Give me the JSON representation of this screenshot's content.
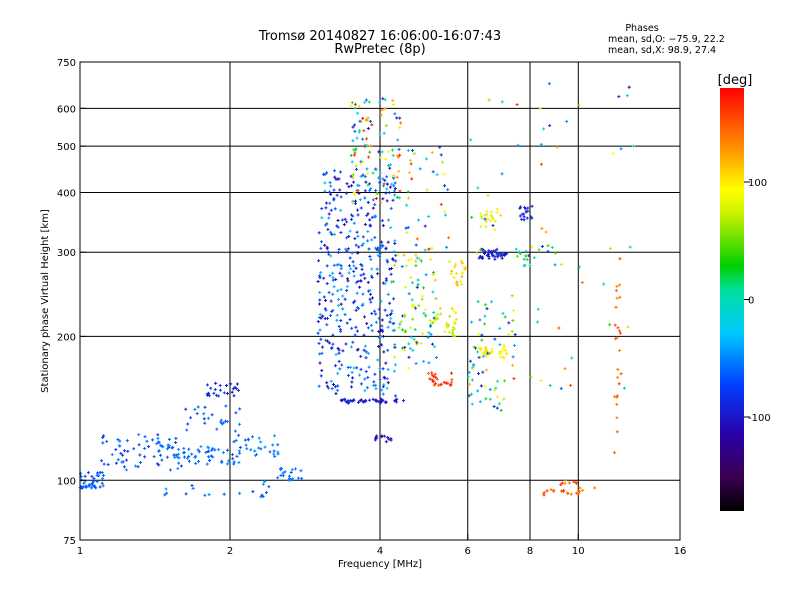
{
  "chart_data": {
    "type": "scatter",
    "title_line1": "Tromsø 20140827 16:06:00-16:07:43",
    "title_line2": "RwPretec (8p)",
    "stats": {
      "title": "Phases",
      "line1": "mean, sd,O: −75.9, 22.2",
      "line2": "mean, sd,X:  98.9, 27.4"
    },
    "xlabel": "Frequency [MHz]",
    "ylabel": "Stationary phase Virtual Height [km]",
    "x_scale": "log",
    "y_scale": "log",
    "xlim": [
      1,
      16
    ],
    "ylim": [
      75,
      750
    ],
    "x_ticks": [
      {
        "value": 1,
        "label": "1"
      },
      {
        "value": 2,
        "label": "2"
      },
      {
        "value": 4,
        "label": "4"
      },
      {
        "value": 6,
        "label": "6"
      },
      {
        "value": 8,
        "label": "8"
      },
      {
        "value": 10,
        "label": "10"
      },
      {
        "value": 16,
        "label": "16"
      }
    ],
    "x_grid": [
      2,
      4,
      6,
      8,
      10
    ],
    "y_ticks": [
      {
        "value": 75,
        "label": "75"
      },
      {
        "value": 100,
        "label": "100"
      },
      {
        "value": 200,
        "label": "200"
      },
      {
        "value": 300,
        "label": "300"
      },
      {
        "value": 400,
        "label": "400"
      },
      {
        "value": 500,
        "label": "500"
      },
      {
        "value": 600,
        "label": "600"
      },
      {
        "value": 750,
        "label": "750"
      }
    ],
    "y_grid": [
      100,
      200,
      300,
      400,
      500,
      600
    ],
    "grid": true,
    "colorbar": {
      "label": "[deg]",
      "range": [
        -180,
        180
      ],
      "ticks": [
        {
          "value": 100,
          "label": "100"
        },
        {
          "value": 0,
          "label": "0"
        },
        {
          "value": -100,
          "label": "-100"
        }
      ],
      "colormap": "rainbow (black-violet-blue-cyan-green-yellow-red)"
    },
    "clusters": [
      {
        "f": [
          1.0,
          1.12
        ],
        "h": [
          96,
          104
        ],
        "phase": [
          -75,
          -50
        ],
        "n": 40
      },
      {
        "f": [
          1.1,
          1.6
        ],
        "h": [
          105,
          125
        ],
        "phase": [
          -85,
          -45
        ],
        "n": 60
      },
      {
        "f": [
          1.4,
          2.1
        ],
        "h": [
          108,
          118
        ],
        "phase": [
          -70,
          -45
        ],
        "n": 60
      },
      {
        "f": [
          2.0,
          2.5
        ],
        "h": [
          112,
          125
        ],
        "phase": [
          -65,
          -45
        ],
        "n": 30
      },
      {
        "f": [
          1.8,
          2.1
        ],
        "h": [
          150,
          160
        ],
        "phase": [
          -110,
          -70
        ],
        "n": 25
      },
      {
        "f": [
          1.6,
          2.1
        ],
        "h": [
          125,
          145
        ],
        "phase": [
          -85,
          -50
        ],
        "n": 25
      },
      {
        "f": [
          2.4,
          2.8
        ],
        "h": [
          100,
          106
        ],
        "phase": [
          -70,
          -50
        ],
        "n": 20
      },
      {
        "f": [
          1.4,
          2.4
        ],
        "h": [
          92,
          100
        ],
        "phase": [
          -80,
          -45
        ],
        "n": 18
      },
      {
        "f": [
          3.3,
          4.6
        ],
        "h": [
          145,
          148
        ],
        "phase": [
          -120,
          -80
        ],
        "n": 45
      },
      {
        "f": [
          3.0,
          4.3
        ],
        "h": [
          150,
          450
        ],
        "phase": [
          -120,
          -30
        ],
        "n": 420
      },
      {
        "f": [
          3.5,
          4.4
        ],
        "h": [
          380,
          630
        ],
        "phase": [
          -100,
          180
        ],
        "n": 110
      },
      {
        "f": [
          3.9,
          4.3
        ],
        "h": [
          120,
          124
        ],
        "phase": [
          -120,
          -90
        ],
        "n": 12
      },
      {
        "f": [
          4.2,
          5.2
        ],
        "h": [
          170,
          300
        ],
        "phase": [
          -100,
          120
        ],
        "n": 90
      },
      {
        "f": [
          4.5,
          5.5
        ],
        "h": [
          300,
          500
        ],
        "phase": [
          -100,
          180
        ],
        "n": 40
      },
      {
        "f": [
          5.0,
          5.6
        ],
        "h": [
          158,
          168
        ],
        "phase": [
          130,
          180
        ],
        "n": 25
      },
      {
        "f": [
          5.0,
          5.7
        ],
        "h": [
          200,
          230
        ],
        "phase": [
          60,
          110
        ],
        "n": 30
      },
      {
        "f": [
          5.5,
          6.0
        ],
        "h": [
          255,
          290
        ],
        "phase": [
          80,
          120
        ],
        "n": 20
      },
      {
        "f": [
          6.3,
          7.2
        ],
        "h": [
          290,
          305
        ],
        "phase": [
          -110,
          -80
        ],
        "n": 40
      },
      {
        "f": [
          6.3,
          7.2
        ],
        "h": [
          180,
          190
        ],
        "phase": [
          80,
          110
        ],
        "n": 30
      },
      {
        "f": [
          6.3,
          7.0
        ],
        "h": [
          330,
          370
        ],
        "phase": [
          70,
          110
        ],
        "n": 20
      },
      {
        "f": [
          6.0,
          7.5
        ],
        "h": [
          140,
          250
        ],
        "phase": [
          -110,
          120
        ],
        "n": 60
      },
      {
        "f": [
          7.6,
          8.1
        ],
        "h": [
          350,
          375
        ],
        "phase": [
          -110,
          -80
        ],
        "n": 18
      },
      {
        "f": [
          7.5,
          9.3
        ],
        "h": [
          280,
          310
        ],
        "phase": [
          -100,
          100
        ],
        "n": 25
      },
      {
        "f": [
          8.5,
          10.8
        ],
        "h": [
          93,
          100
        ],
        "phase": [
          130,
          170
        ],
        "n": 30
      },
      {
        "f": [
          11.8,
          12.2
        ],
        "h": [
          110,
          300
        ],
        "phase": [
          130,
          160
        ],
        "n": 25
      },
      {
        "f": [
          6.0,
          13.0
        ],
        "h": [
          150,
          700
        ],
        "phase": [
          -120,
          170
        ],
        "n": 55
      }
    ]
  }
}
